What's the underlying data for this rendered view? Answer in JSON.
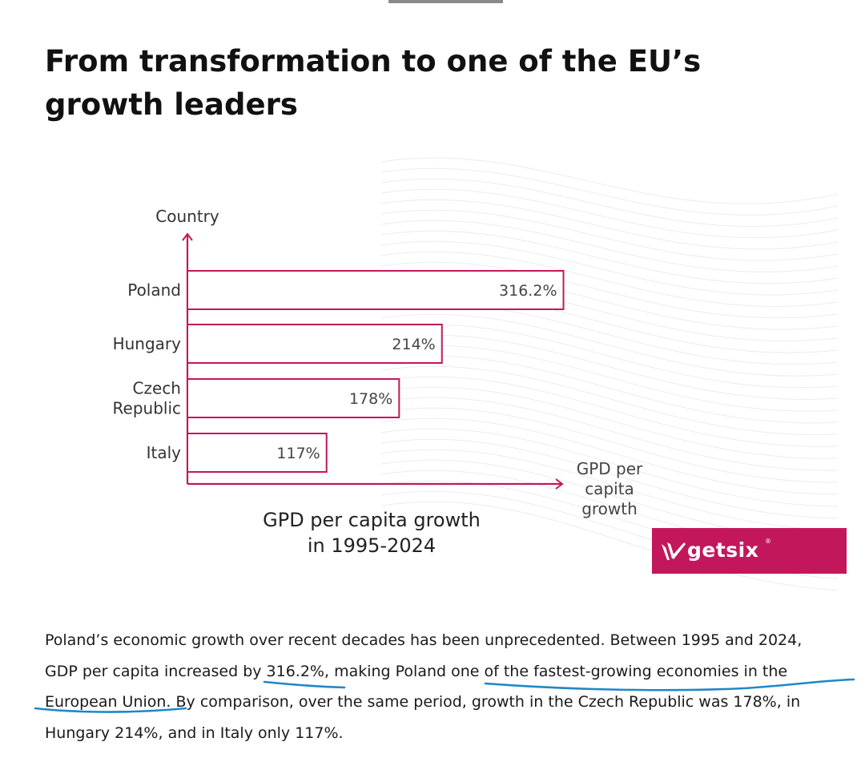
{
  "heading": "From transformation to one of the EU’s growth leaders",
  "chart_data": {
    "type": "bar",
    "orientation": "horizontal",
    "title_lines": [
      "GPD per capita growth",
      "in 1995-2024"
    ],
    "ylabel": "Country",
    "xlabel_lines": [
      "GPD per",
      "capita",
      "growth"
    ],
    "categories": [
      "Poland",
      "Hungary",
      "Czech Republic",
      "Italy"
    ],
    "category_lines": [
      [
        "Poland"
      ],
      [
        "Hungary"
      ],
      [
        "Czech",
        "Republic"
      ],
      [
        "Italy"
      ]
    ],
    "values": [
      316.2,
      214,
      178,
      117
    ],
    "value_labels": [
      "316.2%",
      "214%",
      "178%",
      "117%"
    ],
    "unit": "%",
    "xlim": [
      0,
      330
    ],
    "grid": false,
    "bar_style": "outline",
    "bar_color": "#c2185b",
    "axis_color": "#c2185b"
  },
  "logo": {
    "text": "getsix",
    "mark": "®",
    "background": "#c2185b"
  },
  "paragraph_lines": [
    "Poland’s economic growth over recent decades has been unprecedented. Between 1995 and 2024,",
    "GDP per capita increased by 316.2%, making Poland one of the fastest-growing economies in the",
    "European Union. By comparison, over the same period, growth in the Czech Republic was 178%, in",
    "Hungary 214%, and in Italy only 117%."
  ],
  "colors": {
    "accent": "#c2185b",
    "ink_underline": "#1e88c8",
    "text": "#1a1a1a"
  }
}
